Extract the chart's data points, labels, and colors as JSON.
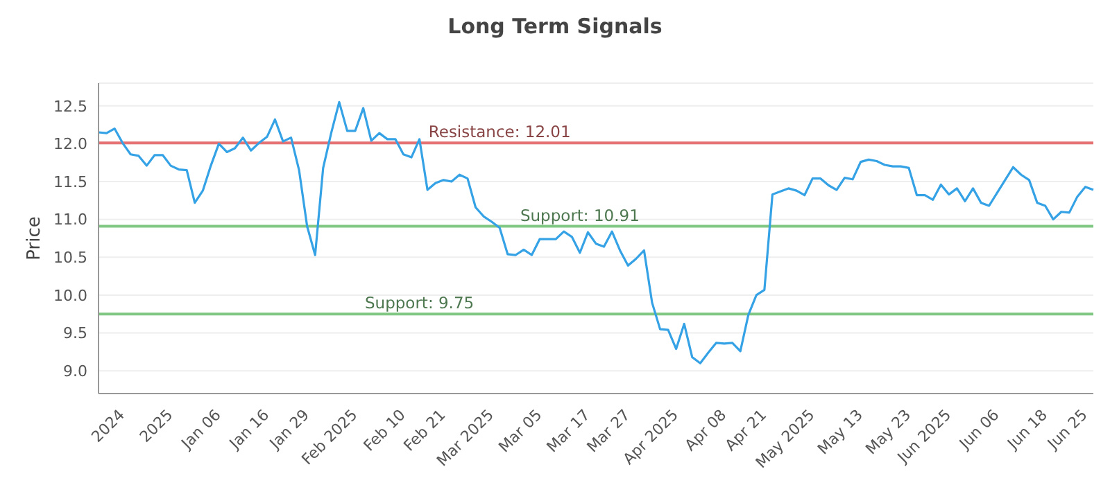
{
  "chart_data": {
    "type": "line",
    "title": "Long Term Signals",
    "ylabel": "Price",
    "categories": [
      null,
      null,
      null,
      "2024",
      null,
      null,
      null,
      null,
      null,
      "2025",
      null,
      null,
      null,
      null,
      null,
      "Jan 06",
      null,
      null,
      null,
      null,
      null,
      "Jan 16",
      null,
      null,
      null,
      null,
      "Jan 29",
      null,
      null,
      null,
      null,
      null,
      "Feb 2025",
      null,
      null,
      null,
      null,
      null,
      "Feb 10",
      null,
      null,
      null,
      null,
      "Feb 21",
      null,
      null,
      null,
      null,
      null,
      "Mar 2025",
      null,
      null,
      null,
      null,
      null,
      "Mar 05",
      null,
      null,
      null,
      null,
      null,
      "Mar 17",
      null,
      null,
      null,
      null,
      "Mar 27",
      null,
      null,
      null,
      null,
      null,
      "Apr 2025",
      null,
      null,
      null,
      null,
      null,
      "Apr 08",
      null,
      null,
      null,
      null,
      "Apr 21",
      null,
      null,
      null,
      null,
      null,
      "May 2025",
      null,
      null,
      null,
      null,
      null,
      "May 13",
      null,
      null,
      null,
      null,
      null,
      "May 23",
      null,
      null,
      null,
      null,
      "Jun 2025",
      null,
      null,
      null,
      null,
      null,
      "Jun 06",
      null,
      null,
      null,
      null,
      null,
      "Jun 18",
      null,
      null,
      null,
      null,
      "Jun 25",
      null
    ],
    "series": [
      {
        "color": "#35a2e6",
        "values": [
          12.15,
          12.14,
          12.2,
          12.01,
          11.86,
          11.84,
          11.71,
          11.85,
          11.85,
          11.71,
          11.66,
          11.65,
          11.22,
          11.38,
          11.71,
          12.0,
          11.89,
          11.94,
          12.08,
          11.91,
          12.01,
          12.09,
          12.32,
          12.03,
          12.08,
          11.65,
          10.91,
          10.53,
          11.68,
          12.14,
          12.55,
          12.17,
          12.17,
          12.47,
          12.04,
          12.14,
          12.06,
          12.06,
          11.86,
          11.82,
          12.06,
          11.39,
          11.48,
          11.52,
          11.5,
          11.59,
          11.54,
          11.16,
          11.04,
          10.97,
          10.89,
          10.54,
          10.53,
          10.6,
          10.53,
          10.74,
          10.74,
          10.74,
          10.84,
          10.77,
          10.56,
          10.83,
          10.68,
          10.64,
          10.84,
          10.59,
          10.39,
          10.48,
          10.59,
          9.9,
          9.55,
          9.54,
          9.29,
          9.62,
          9.18,
          9.1,
          9.24,
          9.37,
          9.36,
          9.37,
          9.26,
          9.74,
          10.0,
          10.07,
          11.33,
          11.37,
          11.41,
          11.38,
          11.32,
          11.54,
          11.54,
          11.45,
          11.39,
          11.55,
          11.53,
          11.76,
          11.79,
          11.77,
          11.72,
          11.7,
          11.7,
          11.68,
          11.32,
          11.32,
          11.26,
          11.46,
          11.33,
          11.41,
          11.24,
          11.41,
          11.22,
          11.18,
          11.35,
          11.52,
          11.69,
          11.59,
          11.52,
          11.22,
          11.18,
          11.0,
          11.1,
          11.09,
          11.3,
          11.43,
          11.39
        ]
      }
    ],
    "ylim": [
      8.7,
      12.8
    ],
    "yticks": [
      {
        "value": 9,
        "label": "9.0"
      },
      {
        "value": 9.5,
        "label": "9.5"
      },
      {
        "value": 10,
        "label": "10.0"
      },
      {
        "value": 10.5,
        "label": "10.5"
      },
      {
        "value": 11,
        "label": "11.0"
      },
      {
        "value": 11.5,
        "label": "11.5"
      },
      {
        "value": 12,
        "label": "12.0"
      },
      {
        "value": 12.5,
        "label": "12.5"
      }
    ],
    "ref_lines": [
      {
        "axis": "y",
        "value": 12.01,
        "label": "Resistance: 12.01",
        "color": "#e57373"
      },
      {
        "axis": "y",
        "value": 10.91,
        "label": "Support: 10.91",
        "color": "#81c784"
      },
      {
        "axis": "y",
        "value": 9.75,
        "label": "Support: 9.75",
        "color": "#81c784"
      }
    ],
    "grid": "y",
    "legend": false,
    "marker": "none",
    "line_style": "solid"
  }
}
